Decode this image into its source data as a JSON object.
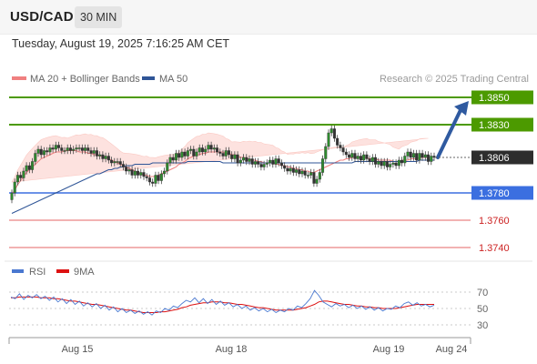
{
  "header": {
    "symbol": "USD/CAD",
    "timeframe": "30 MIN",
    "datetime": "Tuesday, August 19, 2025 7:16:25 AM CET"
  },
  "legend": {
    "ma20": "MA 20 + Bollinger Bands",
    "ma50": "MA 50",
    "credit": "Research © 2025 Trading Central",
    "colors": {
      "ma20": "#f08080",
      "ma50": "#2f5597"
    }
  },
  "rsi_legend": {
    "rsi": "RSI",
    "ma9": "9MA",
    "colors": {
      "rsi": "#4a78d0",
      "ma9": "#dd1111"
    }
  },
  "chart_data": [
    {
      "type": "candlestick",
      "title": "USD/CAD",
      "x_labels": [
        "Aug 15",
        "Aug 18",
        "Aug 19",
        "Aug 24"
      ],
      "ylim": [
        1.373,
        1.386
      ],
      "current_price": 1.3806,
      "levels": [
        {
          "value": 1.385,
          "label": "1.3850",
          "role": "resistance",
          "color": "#4c9a00"
        },
        {
          "value": 1.383,
          "label": "1.3830",
          "role": "resistance",
          "color": "#4c9a00"
        },
        {
          "value": 1.378,
          "label": "1.3780",
          "role": "support",
          "color": "#3b6fe0"
        },
        {
          "value": 1.376,
          "label": "1.3760",
          "role": "support",
          "color": "#e46464"
        },
        {
          "value": 1.374,
          "label": "1.3740",
          "role": "support",
          "color": "#e46464"
        }
      ],
      "close": [
        1.378,
        1.3788,
        1.3793,
        1.3791,
        1.3796,
        1.38,
        1.3797,
        1.3803,
        1.3809,
        1.3812,
        1.3808,
        1.3811,
        1.381,
        1.3813,
        1.3812,
        1.3815,
        1.3813,
        1.3811,
        1.3811,
        1.3813,
        1.3811,
        1.3812,
        1.3813,
        1.3813,
        1.3811,
        1.3813,
        1.3811,
        1.3809,
        1.3811,
        1.3807,
        1.3808,
        1.3805,
        1.3807,
        1.3804,
        1.3802,
        1.3803,
        1.3803,
        1.3801,
        1.3799,
        1.3796,
        1.3797,
        1.3793,
        1.3796,
        1.3793,
        1.3795,
        1.3792,
        1.3791,
        1.3788,
        1.3787,
        1.3793,
        1.3789,
        1.3794,
        1.3796,
        1.3802,
        1.3806,
        1.3804,
        1.3809,
        1.3806,
        1.381,
        1.3807,
        1.3811,
        1.3812,
        1.3807,
        1.381,
        1.3813,
        1.381,
        1.3812,
        1.3815,
        1.3812,
        1.3813,
        1.381,
        1.3809,
        1.3807,
        1.3811,
        1.3808,
        1.3805,
        1.3808,
        1.3802,
        1.3804,
        1.3806,
        1.3803,
        1.3805,
        1.3801,
        1.3803,
        1.3801,
        1.3799,
        1.3801,
        1.3802,
        1.3804,
        1.3801,
        1.3805,
        1.3802,
        1.38,
        1.3798,
        1.3796,
        1.3798,
        1.3795,
        1.3797,
        1.3794,
        1.3796,
        1.3793,
        1.3793,
        1.3795,
        1.3787,
        1.379,
        1.3795,
        1.3805,
        1.3814,
        1.3824,
        1.3827,
        1.382,
        1.3815,
        1.3813,
        1.381,
        1.3808,
        1.3806,
        1.3809,
        1.3805,
        1.3807,
        1.3804,
        1.3808,
        1.3805,
        1.3803,
        1.3806,
        1.3801,
        1.3803,
        1.38,
        1.3803,
        1.3799,
        1.3801,
        1.3802,
        1.38,
        1.3804,
        1.3802,
        1.3807,
        1.381,
        1.3806,
        1.3809,
        1.3804,
        1.3809,
        1.3806,
        1.3808,
        1.3803,
        1.3807,
        1.3806
      ],
      "ma20": [
        1.3779,
        1.3782,
        1.3786,
        1.3789,
        1.3792,
        1.3795,
        1.3797,
        1.3799,
        1.3801,
        1.3803,
        1.3805,
        1.3806,
        1.3807,
        1.3808,
        1.3809,
        1.381,
        1.381,
        1.381,
        1.3811,
        1.3811,
        1.3811,
        1.3811,
        1.3811,
        1.381,
        1.381,
        1.381,
        1.3809,
        1.3809,
        1.3808,
        1.3808,
        1.3807,
        1.3807,
        1.3806,
        1.3805,
        1.3804,
        1.3803,
        1.3802,
        1.3801,
        1.38,
        1.3799,
        1.3798,
        1.3797,
        1.3796,
        1.3795,
        1.3794,
        1.3793,
        1.3793,
        1.3792,
        1.3792,
        1.3792,
        1.3793,
        1.3794,
        1.3795,
        1.3796,
        1.3797,
        1.3798,
        1.3799,
        1.3801,
        1.3802,
        1.3803,
        1.3805,
        1.3806,
        1.3807,
        1.3808,
        1.3808,
        1.3809,
        1.3809,
        1.381,
        1.381,
        1.381,
        1.381,
        1.381,
        1.381,
        1.3809,
        1.3809,
        1.3808,
        1.3808,
        1.3807,
        1.3806,
        1.3806,
        1.3805,
        1.3805,
        1.3804,
        1.3804,
        1.3803,
        1.3803,
        1.3802,
        1.3802,
        1.3802,
        1.3802,
        1.3801,
        1.3801,
        1.38,
        1.38,
        1.3799,
        1.3799,
        1.3798,
        1.3798,
        1.3797,
        1.3797,
        1.3796,
        1.3796,
        1.3795,
        1.3795,
        1.3796,
        1.3797,
        1.3798,
        1.3799,
        1.38,
        1.3801,
        1.3802,
        1.3803,
        1.3804,
        1.3804,
        1.3805,
        1.3805,
        1.3806,
        1.3806,
        1.3806,
        1.3806,
        1.3806,
        1.3806,
        1.3805,
        1.3805,
        1.3805,
        1.3804,
        1.3804,
        1.3804,
        1.3804,
        1.3804,
        1.3803,
        1.3803,
        1.3803,
        1.3804,
        1.3804,
        1.3804,
        1.3805,
        1.3805,
        1.3805,
        1.3806,
        1.3806,
        1.3806,
        1.3806
      ],
      "ma50": [
        1.3765,
        1.3766,
        1.3767,
        1.3768,
        1.3769,
        1.377,
        1.3771,
        1.3772,
        1.3773,
        1.3774,
        1.3775,
        1.3776,
        1.3777,
        1.3778,
        1.3779,
        1.378,
        1.3781,
        1.3782,
        1.3783,
        1.3784,
        1.3785,
        1.3786,
        1.3787,
        1.3788,
        1.3789,
        1.379,
        1.3791,
        1.3792,
        1.3793,
        1.3794,
        1.3794,
        1.3795,
        1.3796,
        1.3797,
        1.3797,
        1.3798,
        1.3798,
        1.3799,
        1.3799,
        1.38,
        1.38,
        1.38,
        1.3801,
        1.3801,
        1.3801,
        1.3801,
        1.3801,
        1.3801,
        1.3802,
        1.3802,
        1.3802,
        1.3802,
        1.3802,
        1.3802,
        1.3802,
        1.3802,
        1.3802,
        1.3802,
        1.3802,
        1.3802,
        1.3803,
        1.3803,
        1.3803,
        1.3803,
        1.3803,
        1.3803,
        1.3803,
        1.3803,
        1.3803,
        1.3803,
        1.3803,
        1.3803,
        1.3802,
        1.3802,
        1.3802,
        1.3802,
        1.3802,
        1.3802,
        1.3802,
        1.3802,
        1.3802,
        1.3802,
        1.3802,
        1.3802,
        1.3802,
        1.3802,
        1.3802,
        1.3802,
        1.3802,
        1.3802,
        1.3802,
        1.3802,
        1.3802,
        1.3802,
        1.3802,
        1.3802,
        1.3802,
        1.3802,
        1.3802,
        1.3802,
        1.3802,
        1.3802,
        1.3802,
        1.3802,
        1.3802,
        1.3802,
        1.3802,
        1.3802,
        1.3802,
        1.3802,
        1.3802,
        1.3802,
        1.3802,
        1.3802,
        1.3802,
        1.3802,
        1.3802,
        1.3803,
        1.3803,
        1.3803,
        1.3803,
        1.3803,
        1.3803,
        1.3803,
        1.3803,
        1.3803,
        1.3803,
        1.3803,
        1.3803,
        1.3803,
        1.3803,
        1.3803,
        1.3803,
        1.3803,
        1.3803,
        1.3803,
        1.3803,
        1.3803,
        1.3803,
        1.3804,
        1.3804,
        1.3804,
        1.3804,
        1.3804,
        1.3804
      ],
      "projection": {
        "from": 1.3806,
        "to": 1.385
      }
    },
    {
      "type": "line",
      "title": "RSI",
      "ylim": [
        20,
        80
      ],
      "y_ticks": [
        "70",
        "50",
        "30"
      ],
      "series": [
        {
          "name": "RSI",
          "values": [
            64,
            62,
            68,
            61,
            66,
            63,
            67,
            62,
            65,
            60,
            64,
            58,
            62,
            56,
            61,
            55,
            59,
            53,
            57,
            52,
            56,
            50,
            54,
            48,
            52,
            46,
            50,
            45,
            48,
            44,
            47,
            43,
            46,
            42,
            47,
            45,
            50,
            48,
            53,
            51,
            56,
            60,
            58,
            63,
            57,
            62,
            56,
            61,
            55,
            59,
            54,
            57,
            52,
            55,
            50,
            53,
            48,
            51,
            47,
            50,
            46,
            49,
            45,
            48,
            46,
            50,
            48,
            53,
            51,
            56,
            62,
            72,
            66,
            58,
            55,
            52,
            56,
            53,
            55,
            51,
            54,
            50,
            53,
            49,
            52,
            48,
            51,
            47,
            50,
            49,
            53,
            51,
            56,
            58,
            54,
            57,
            53,
            55,
            52,
            54
          ]
        },
        {
          "name": "9MA",
          "values": [
            63,
            63,
            64,
            64,
            64,
            64,
            64,
            63,
            63,
            63,
            62,
            62,
            61,
            60,
            59,
            59,
            58,
            57,
            56,
            55,
            55,
            54,
            53,
            52,
            51,
            50,
            49,
            48,
            48,
            47,
            46,
            45,
            45,
            45,
            45,
            46,
            46,
            47,
            48,
            49,
            51,
            52,
            54,
            55,
            56,
            57,
            57,
            58,
            58,
            58,
            57,
            57,
            56,
            55,
            55,
            54,
            53,
            52,
            51,
            51,
            50,
            49,
            48,
            48,
            48,
            48,
            48,
            49,
            50,
            51,
            53,
            55,
            58,
            59,
            59,
            58,
            57,
            56,
            55,
            55,
            54,
            53,
            53,
            52,
            52,
            51,
            51,
            50,
            50,
            50,
            50,
            51,
            52,
            53,
            54,
            55,
            55,
            55,
            55,
            55
          ]
        }
      ]
    }
  ]
}
